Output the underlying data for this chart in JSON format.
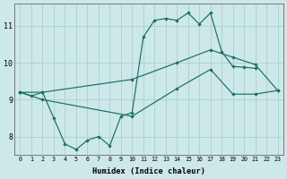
{
  "xlabel": "Humidex (Indice chaleur)",
  "background_color": "#cce8e8",
  "grid_color": "#aacece",
  "line_color": "#1a6e62",
  "xlim": [
    -0.5,
    23.5
  ],
  "ylim": [
    7.5,
    11.6
  ],
  "yticks": [
    8,
    9,
    10,
    11
  ],
  "xticks": [
    0,
    1,
    2,
    3,
    4,
    5,
    6,
    7,
    8,
    9,
    10,
    11,
    12,
    13,
    14,
    15,
    16,
    17,
    18,
    19,
    20,
    21,
    22,
    23
  ],
  "series0": {
    "x": [
      0,
      1,
      2,
      3,
      4,
      5,
      6,
      7,
      8,
      9,
      10,
      11,
      12,
      13,
      14,
      15,
      16,
      17,
      18,
      19,
      20,
      21
    ],
    "y": [
      9.2,
      9.1,
      9.2,
      8.5,
      7.8,
      7.65,
      7.9,
      8.0,
      7.75,
      8.55,
      8.65,
      10.7,
      11.15,
      11.2,
      11.15,
      11.35,
      11.05,
      11.35,
      10.3,
      9.9,
      9.88,
      9.85
    ]
  },
  "series1": {
    "x": [
      0,
      2,
      10,
      14,
      17,
      19,
      21,
      23
    ],
    "y": [
      9.2,
      9.2,
      9.55,
      10.0,
      10.35,
      10.15,
      9.95,
      9.25
    ]
  },
  "series2": {
    "x": [
      0,
      2,
      10,
      14,
      17,
      19,
      21,
      23
    ],
    "y": [
      9.2,
      9.0,
      8.55,
      9.3,
      9.82,
      9.15,
      9.15,
      9.25
    ]
  }
}
